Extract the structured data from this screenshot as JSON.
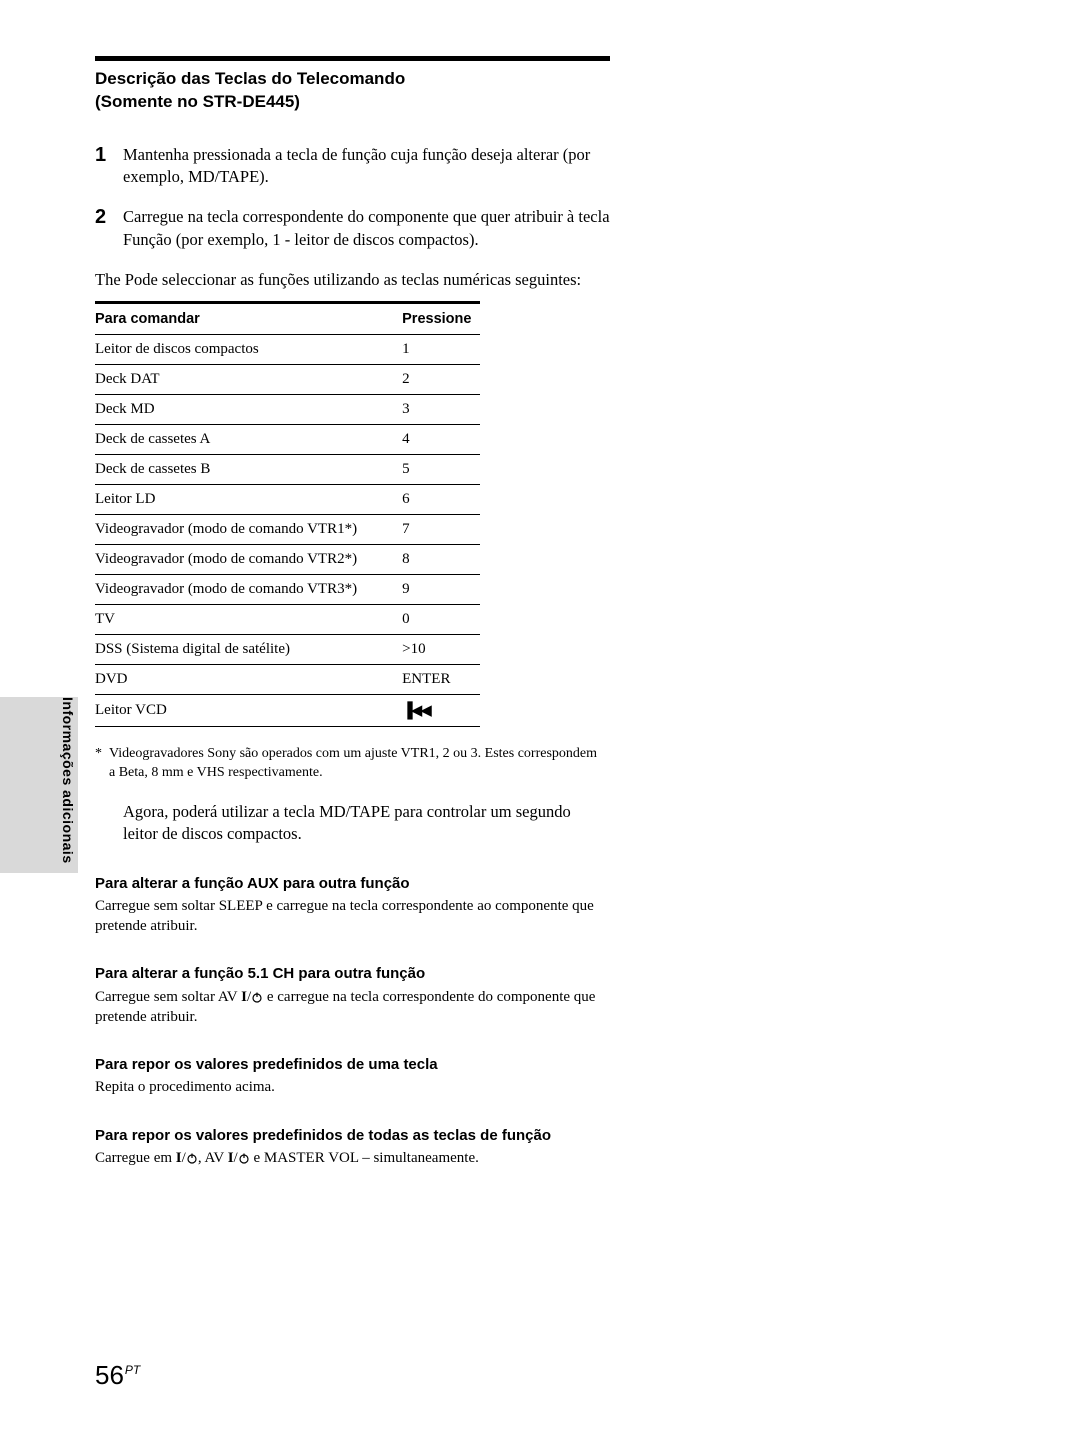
{
  "side_tab_label": "Informações adicionais",
  "section_title_line1": "Descrição das Teclas do Telecomando",
  "section_title_line2": "(Somente no STR-DE445)",
  "steps": [
    {
      "num": "1",
      "body": "Mantenha pressionada a tecla de função cuja função deseja alterar (por exemplo, MD/TAPE)."
    },
    {
      "num": "2",
      "body": "Carregue na tecla correspondente do componente que quer atribuir à tecla Função (por exemplo, 1 - leitor de discos compactos)."
    }
  ],
  "lead_in": "The Pode seleccionar as funções utilizando as teclas numéricas seguintes:",
  "table": {
    "col1_header": "Para comandar",
    "col2_header": "Pressione",
    "rows": [
      {
        "cmd": "Leitor de discos compactos",
        "press": "1"
      },
      {
        "cmd": "Deck DAT",
        "press": "2"
      },
      {
        "cmd": "Deck MD",
        "press": "3"
      },
      {
        "cmd": "Deck de cassetes A",
        "press": "4"
      },
      {
        "cmd": "Deck de cassetes B",
        "press": "5"
      },
      {
        "cmd": "Leitor LD",
        "press": "6"
      },
      {
        "cmd": "Videogravador (modo de comando VTR1*)",
        "press": "7"
      },
      {
        "cmd": "Videogravador (modo de comando VTR2*)",
        "press": "8"
      },
      {
        "cmd": "Videogravador (modo de comando VTR3*)",
        "press": "9"
      },
      {
        "cmd": "TV",
        "press": "0"
      },
      {
        "cmd": "DSS (Sistema digital de satélite)",
        "press": ">10"
      },
      {
        "cmd": "DVD",
        "press": "ENTER"
      },
      {
        "cmd": "Leitor VCD",
        "press": "__PREV_ICON__"
      }
    ]
  },
  "footnote": "Videogravadores Sony são operados com um ajuste VTR1, 2 ou 3. Estes correspondem a Beta, 8 mm e VHS respectivamente.",
  "after_note": "Agora, poderá utilizar a tecla MD/TAPE para controlar um segundo leitor de discos compactos.",
  "subs": [
    {
      "title": "Para alterar a função AUX para outra função",
      "body": "Carregue sem soltar SLEEP e carregue na tecla correspondente ao componente que pretende atribuir."
    },
    {
      "title": "Para alterar a função 5.1 CH para outra função",
      "body_parts": [
        "Carregue sem soltar AV ",
        " e carregue na tecla correspondente do componente que pretende atribuir."
      ]
    },
    {
      "title": "Para repor os valores predefinidos de uma tecla",
      "body": "Repita o procedimento acima."
    },
    {
      "title": "Para repor os valores predefinidos de todas as teclas de função",
      "body_parts": [
        "Carregue em ",
        ", AV ",
        " e MASTER VOL – simultaneamente."
      ]
    }
  ],
  "page_number": "56",
  "page_number_suffix": "PT"
}
